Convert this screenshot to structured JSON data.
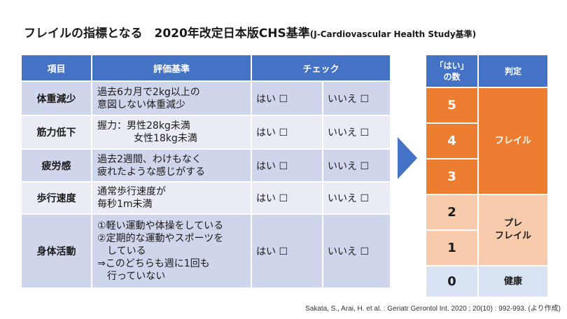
{
  "title": {
    "main": "フレイルの指標となる　2020年改定日本版CHS基準",
    "sub": "(J-Cardiovascular  Health  Study基準)"
  },
  "criteria_table": {
    "headers": {
      "item": "項目",
      "criteria": "評価基準",
      "check": "チェック"
    },
    "yes_label": "はい ☐",
    "no_label": "いいえ ☐",
    "rows": [
      {
        "item": "体重減少",
        "lines": [
          "過去6カ月で2kg以上の",
          "意図しない体重減少"
        ]
      },
      {
        "item": "筋力低下",
        "lines": [
          "握力：男性28kg未満",
          "女性18kg未満"
        ]
      },
      {
        "item": "疲労感",
        "lines": [
          "過去2週間、わけもなく",
          "疲れたような感じがする"
        ]
      },
      {
        "item": "歩行速度",
        "lines": [
          "通常歩行速度が",
          "毎秒1m未満"
        ]
      },
      {
        "item": "身体活動",
        "lines": [
          "①軽い運動や体操をしている",
          "②定期的な運動やスポーツを",
          "している",
          "⇒このどちらも週に1回も",
          "行っていない"
        ]
      }
    ]
  },
  "judgement_table": {
    "headers": {
      "count_line1": "「はい」",
      "count_line2": "の数",
      "judgement": "判定"
    },
    "counts": [
      "5",
      "4",
      "3",
      "2",
      "1",
      "0"
    ],
    "categories": {
      "frail": "フレイル",
      "prefrail_line1": "プレ",
      "prefrail_line2": "フレイル",
      "robust": "健康"
    }
  },
  "citation": "Sakata, S., Arai, H. et al. : Geriatr Gerontol Int. 2020 ; 20(10) : 992-993. (より作成)",
  "colors": {
    "header_blue": "#4472c4",
    "row_dark": "#cfd5ea",
    "row_light": "#e9ebf5",
    "frail_orange": "#ed7d31",
    "prefrail_peach": "#f8cbad",
    "robust_blue": "#dae3f3"
  }
}
